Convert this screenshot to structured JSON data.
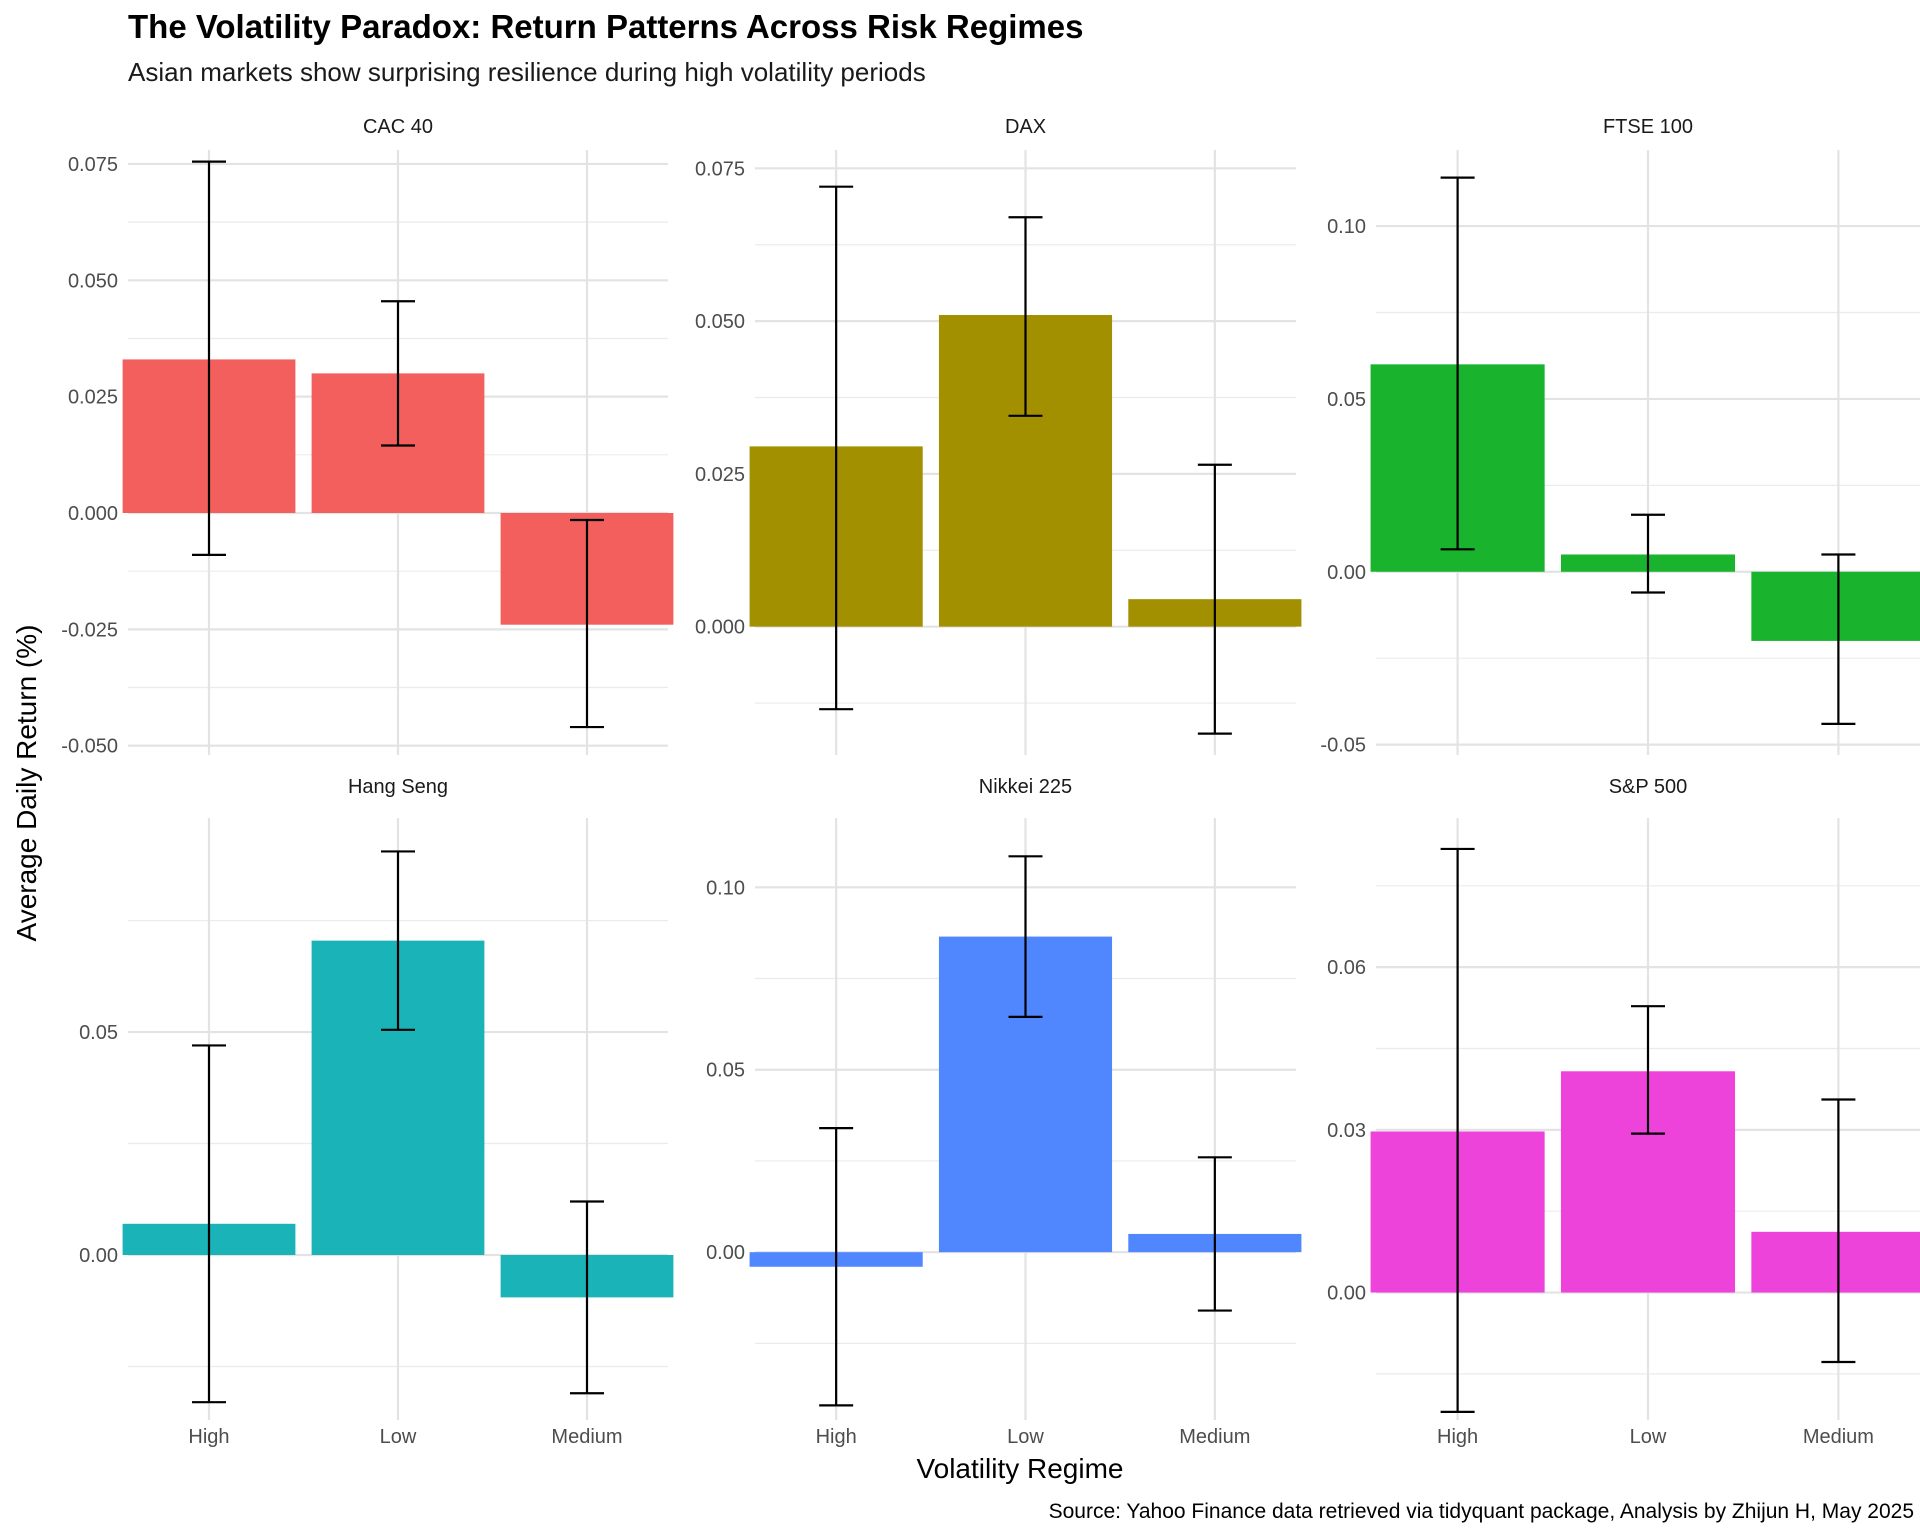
{
  "chart_data": {
    "type": "bar",
    "title": "The Volatility Paradox: Return Patterns Across Risk Regimes",
    "subtitle": "Asian markets show surprising resilience during high volatility periods",
    "caption": "Source: Yahoo Finance data retrieved via tidyquant package, Analysis by Zhijun H, May 2025",
    "xlabel": "Volatility Regime",
    "ylabel": "Average Daily Return (%)",
    "categories": [
      "High",
      "Low",
      "Medium"
    ],
    "facets_ncol": 3,
    "grid": true,
    "legend": "none",
    "error_bars": true,
    "facets": [
      {
        "name": "CAC 40",
        "color": "#F25F5C",
        "ylim": [
          -0.052,
          0.078
        ],
        "yticks": [
          -0.05,
          -0.025,
          0,
          0.025,
          0.05,
          0.075
        ],
        "ytick_labels": [
          "-0.050",
          "-0.025",
          "0.000",
          "0.025",
          "0.050",
          "0.075"
        ],
        "values": [
          0.033,
          0.03,
          -0.024
        ],
        "err_low": [
          -0.009,
          0.0145,
          -0.046
        ],
        "err_high": [
          0.0755,
          0.0455,
          -0.0015
        ]
      },
      {
        "name": "DAX",
        "color": "#A39000",
        "ylim": [
          -0.021,
          0.078
        ],
        "yticks": [
          0,
          0.025,
          0.05,
          0.075
        ],
        "ytick_labels": [
          "0.000",
          "0.025",
          "0.050",
          "0.075"
        ],
        "values": [
          0.0295,
          0.051,
          0.0045
        ],
        "err_low": [
          -0.0135,
          0.0345,
          -0.0175
        ],
        "err_high": [
          0.072,
          0.067,
          0.0265
        ]
      },
      {
        "name": "FTSE 100",
        "color": "#19B32E",
        "ylim": [
          -0.053,
          0.122
        ],
        "yticks": [
          -0.05,
          0,
          0.05,
          0.1
        ],
        "ytick_labels": [
          "-0.05",
          "0.00",
          "0.05",
          "0.10"
        ],
        "values": [
          0.06,
          0.005,
          -0.02
        ],
        "err_low": [
          0.0065,
          -0.006,
          -0.044
        ],
        "err_high": [
          0.114,
          0.0165,
          0.005
        ]
      },
      {
        "name": "Hang Seng",
        "color": "#1AB3B8",
        "ylim": [
          -0.037,
          0.098
        ],
        "yticks": [
          0,
          0.05
        ],
        "ytick_labels": [
          "0.00",
          "0.05"
        ],
        "values": [
          0.007,
          0.0705,
          -0.0095
        ],
        "err_low": [
          -0.033,
          0.0505,
          -0.031
        ],
        "err_high": [
          0.047,
          0.0905,
          0.012
        ]
      },
      {
        "name": "Nikkei 225",
        "color": "#5087FF",
        "ylim": [
          -0.046,
          0.119
        ],
        "yticks": [
          0,
          0.05,
          0.1
        ],
        "ytick_labels": [
          "0.00",
          "0.05",
          "0.10"
        ],
        "values": [
          -0.004,
          0.0865,
          0.005
        ],
        "err_low": [
          -0.042,
          0.0645,
          -0.016
        ],
        "err_high": [
          0.034,
          0.1085,
          0.026
        ]
      },
      {
        "name": "S&P 500",
        "color": "#EE43DB",
        "ylim": [
          -0.0235,
          0.0875
        ],
        "yticks": [
          0,
          0.03,
          0.06
        ],
        "ytick_labels": [
          "0.00",
          "0.03",
          "0.06"
        ],
        "values": [
          0.0297,
          0.0408,
          0.0112
        ],
        "err_low": [
          -0.022,
          0.0293,
          -0.0128
        ],
        "err_high": [
          0.0818,
          0.0528,
          0.0356
        ]
      }
    ]
  }
}
